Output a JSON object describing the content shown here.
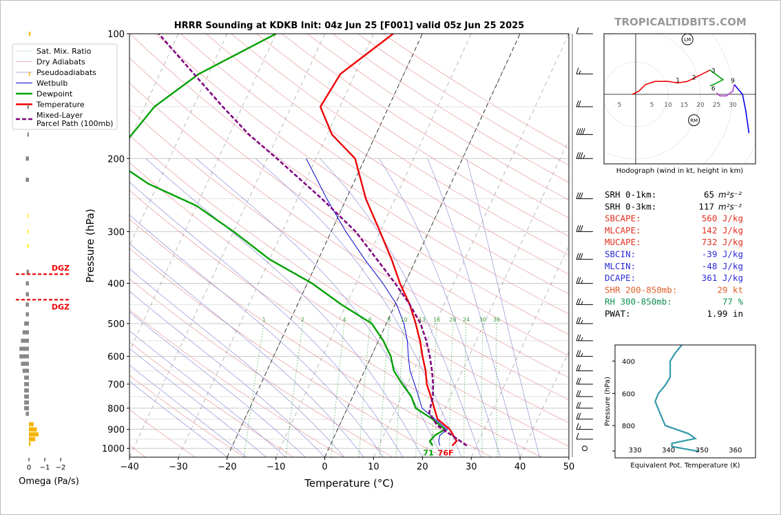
{
  "chart_data": [
    {
      "type": "line",
      "title": "HRRR Sounding at KDKB Init: 04z Jun 25 [F001] valid 05z Jun 25 2025",
      "xlabel": "Temperature (°C)",
      "ylabel": "Pressure (hPa)",
      "xlim": [
        -40,
        50
      ],
      "ylim": [
        1050,
        100
      ],
      "y_scale": "log",
      "x_ticks": [
        "−40",
        "−30",
        "−20",
        "−10",
        "0",
        "10",
        "20",
        "30",
        "40",
        "50"
      ],
      "y_ticks": [
        "100",
        "200",
        "300",
        "400",
        "500",
        "600",
        "700",
        "800",
        "900",
        "1000"
      ],
      "legend": {
        "placement": "top-left",
        "entries": [
          "Sat. Mix. Ratio",
          "Dry Adiabats",
          "Pseudoadiabats",
          "Wetbulb",
          "Dewpoint",
          "Temperature",
          "Mixed-Layer\nParcel Path (100mb)"
        ]
      },
      "mixing_ratio_labels": [
        "1",
        "2",
        "4",
        "6",
        "8",
        "10",
        "13",
        "16",
        "20",
        "24",
        "30",
        "36"
      ],
      "surface_labels": {
        "dewpoint": "71",
        "temperature": "76F"
      },
      "series": [
        {
          "name": "Temperature",
          "color": "#ee0000",
          "points": [
            [
              25.0,
              985
            ],
            [
              25.5,
              960
            ],
            [
              23,
              900
            ],
            [
              19.5,
              850
            ],
            [
              16,
              750
            ],
            [
              14,
              700
            ],
            [
              12.5,
              650
            ],
            [
              10.5,
              600
            ],
            [
              8.5,
              550
            ],
            [
              6,
              500
            ],
            [
              3,
              450
            ],
            [
              -1,
              400
            ],
            [
              -5,
              350
            ],
            [
              -10,
              300
            ],
            [
              -16,
              250
            ],
            [
              -22,
              200
            ],
            [
              -29,
              175
            ],
            [
              -34,
              150
            ],
            [
              -33,
              125
            ],
            [
              -26,
              100
            ]
          ]
        },
        {
          "name": "Dewpoint",
          "color": "#00a000",
          "points": [
            [
              21,
              985
            ],
            [
              20,
              960
            ],
            [
              20.5,
              930
            ],
            [
              22,
              900
            ],
            [
              18.5,
              850
            ],
            [
              14,
              800
            ],
            [
              12,
              750
            ],
            [
              9,
              700
            ],
            [
              6,
              650
            ],
            [
              4,
              600
            ],
            [
              1,
              550
            ],
            [
              -3,
              500
            ],
            [
              -11,
              450
            ],
            [
              -19,
              400
            ],
            [
              -30,
              350
            ],
            [
              -40,
              300
            ],
            [
              -50,
              260
            ],
            [
              -62,
              230
            ],
            [
              -72,
              200
            ],
            [
              -70,
              175
            ],
            [
              -68,
              150
            ],
            [
              -62,
              125
            ],
            [
              -50,
              100
            ]
          ]
        },
        {
          "name": "Wetbulb",
          "color": "#0000cc",
          "points": [
            [
              22.5,
              985
            ],
            [
              21.8,
              960
            ],
            [
              21.5,
              930
            ],
            [
              22.5,
              900
            ],
            [
              19,
              850
            ],
            [
              15.3,
              800
            ],
            [
              13.5,
              750
            ],
            [
              11.5,
              700
            ],
            [
              9.3,
              650
            ],
            [
              7.6,
              600
            ],
            [
              5.9,
              550
            ],
            [
              3.6,
              500
            ],
            [
              0.3,
              450
            ],
            [
              -4.5,
              400
            ],
            [
              -10.5,
              350
            ],
            [
              -17,
              300
            ],
            [
              -24,
              250
            ],
            [
              -32,
              200
            ]
          ]
        },
        {
          "name": "Mixed-Layer\nParcel Path (100mb)",
          "color": "#800080",
          "points": [
            [
              28,
              985
            ],
            [
              24,
              930
            ],
            [
              20,
              880
            ],
            [
              17.2,
              820
            ],
            [
              16.4,
              750
            ],
            [
              15.3,
              700
            ],
            [
              13.8,
              650
            ],
            [
              12,
              600
            ],
            [
              9.8,
              550
            ],
            [
              7,
              500
            ],
            [
              3,
              450
            ],
            [
              -2,
              400
            ],
            [
              -8,
              350
            ],
            [
              -15,
              300
            ],
            [
              -25,
              250
            ],
            [
              -38,
              200
            ],
            [
              -46,
              175
            ],
            [
              -54,
              150
            ],
            [
              -63,
              125
            ],
            [
              -74,
              100
            ]
          ]
        }
      ],
      "wind_barbs_kt": [
        [
          1000,
          0
        ],
        [
          950,
          10
        ],
        [
          900,
          15
        ],
        [
          850,
          20
        ],
        [
          800,
          20
        ],
        [
          750,
          20
        ],
        [
          700,
          20
        ],
        [
          650,
          20
        ],
        [
          600,
          25
        ],
        [
          550,
          25
        ],
        [
          500,
          25
        ],
        [
          450,
          25
        ],
        [
          400,
          25
        ],
        [
          350,
          30
        ],
        [
          300,
          30
        ],
        [
          250,
          30
        ],
        [
          200,
          35
        ],
        [
          175,
          40
        ],
        [
          150,
          20
        ],
        [
          125,
          15
        ],
        [
          100,
          10
        ]
      ]
    },
    {
      "type": "bar",
      "title": "Omega (Pa/s)",
      "xlim": [
        1,
        -3
      ],
      "x_ticks": [
        "0",
        "−1",
        "−2"
      ],
      "annotations": [
        "DGZ",
        "DGZ"
      ],
      "dgz_pressure": [
        380,
        438
      ],
      "bars": [
        [
          100,
          -0.1
        ],
        [
          125,
          -0.05
        ],
        [
          150,
          0.1
        ],
        [
          175,
          0.1
        ],
        [
          200,
          0.2
        ],
        [
          225,
          0.2
        ],
        [
          275,
          0.08
        ],
        [
          300,
          0.08
        ],
        [
          325,
          0.1
        ],
        [
          375,
          0.15
        ],
        [
          400,
          0.2
        ],
        [
          425,
          0.2
        ],
        [
          450,
          0.2
        ],
        [
          475,
          0.2
        ],
        [
          500,
          0.3
        ],
        [
          525,
          0.4
        ],
        [
          550,
          0.5
        ],
        [
          575,
          0.6
        ],
        [
          600,
          0.6
        ],
        [
          625,
          0.5
        ],
        [
          650,
          0.4
        ],
        [
          675,
          0.3
        ],
        [
          700,
          0.3
        ],
        [
          725,
          0.3
        ],
        [
          750,
          0.3
        ],
        [
          775,
          0.3
        ],
        [
          800,
          0.3
        ],
        [
          825,
          0.2
        ],
        [
          875,
          -0.3
        ],
        [
          900,
          -0.5
        ],
        [
          925,
          -0.6
        ],
        [
          950,
          -0.4
        ],
        [
          975,
          -0.1
        ]
      ],
      "bar_colors": {
        "up": "#888888",
        "down": "#f5b300",
        "weak": "#ffee33"
      }
    },
    {
      "type": "line",
      "title": "Hodograph (wind in kt, height in km)",
      "x_ticks": [
        "5",
        "5",
        "10",
        "15",
        "20",
        "25",
        "30"
      ],
      "height_labels": [
        "1",
        "2",
        "3",
        "9",
        "6"
      ],
      "markers": [
        "LM",
        "RM"
      ],
      "segments": [
        {
          "color": "#ee0000",
          "points": [
            [
              -1,
              0
            ],
            [
              1,
              1
            ],
            [
              3,
              3
            ],
            [
              6,
              4
            ],
            [
              10,
              4
            ],
            [
              13,
              3.5
            ],
            [
              16,
              4
            ],
            [
              20,
              6
            ],
            [
              23,
              7.5
            ]
          ]
        },
        {
          "color": "#00a000",
          "points": [
            [
              23,
              7.5
            ],
            [
              25,
              6
            ],
            [
              27,
              4.5
            ],
            [
              24,
              3
            ],
            [
              23,
              2.6
            ]
          ]
        },
        {
          "color": "#b040d0",
          "points": [
            [
              25,
              0.5
            ],
            [
              26,
              -0.5
            ],
            [
              28,
              -0.5
            ],
            [
              30,
              1
            ],
            [
              30.5,
              3
            ]
          ]
        },
        {
          "color": "#0000ee",
          "points": [
            [
              30.5,
              3
            ],
            [
              33,
              0
            ],
            [
              34,
              -5
            ],
            [
              35,
              -12
            ]
          ]
        }
      ],
      "lm": [
        16,
        17
      ],
      "rm": [
        18,
        -8
      ]
    },
    {
      "type": "line",
      "title": "",
      "xlabel": "Equivalent Pot. Temperature (K)",
      "ylabel": "Pressure (hPa)",
      "x_ticks": [
        "330",
        "340",
        "350",
        "360"
      ],
      "y_ticks": [
        "400",
        "600",
        "800"
      ],
      "series": [
        {
          "color": "#3399aa",
          "points": [
            [
              344,
              300
            ],
            [
              342,
              350
            ],
            [
              340.5,
              400
            ],
            [
              340.5,
              450
            ],
            [
              340.5,
              500
            ],
            [
              339,
              550
            ],
            [
              337,
              600
            ],
            [
              336,
              650
            ],
            [
              337,
              700
            ],
            [
              338,
              750
            ],
            [
              339,
              800
            ],
            [
              346,
              850
            ],
            [
              348,
              880
            ],
            [
              341,
              910
            ],
            [
              341,
              930
            ],
            [
              349,
              960
            ]
          ]
        }
      ]
    }
  ],
  "brand": "TROPICALTIDBITS.COM",
  "stats": [
    {
      "label": "SRH 0-1km:",
      "value": "65",
      "unit": "m²s⁻²",
      "color": "#000000"
    },
    {
      "label": "SRH 0-3km:",
      "value": "117",
      "unit": "m²s⁻²",
      "color": "#000000"
    },
    {
      "label": "SBCAPE:",
      "value": "560 J/kg",
      "unit": "",
      "color": "#e03020"
    },
    {
      "label": "MLCAPE:",
      "value": "142 J/kg",
      "unit": "",
      "color": "#e03020"
    },
    {
      "label": "MUCAPE:",
      "value": "732 J/kg",
      "unit": "",
      "color": "#e03020"
    },
    {
      "label": "SBCIN:",
      "value": "-39 J/kg",
      "unit": "",
      "color": "#2b2bd6"
    },
    {
      "label": "MLCIN:",
      "value": "-48 J/kg",
      "unit": "",
      "color": "#2b2bd6"
    },
    {
      "label": "DCAPE:",
      "value": "361 J/kg",
      "unit": "",
      "color": "#2b2bd6"
    },
    {
      "label": "SHR 200-850mb:",
      "value": "29 kt",
      "unit": "",
      "color": "#e0602a"
    },
    {
      "label": "RH 300-850mb:",
      "value": "77 %",
      "unit": "",
      "color": "#109050"
    },
    {
      "label": "PWAT:",
      "value": "1.99 in",
      "unit": "",
      "color": "#000000"
    }
  ]
}
